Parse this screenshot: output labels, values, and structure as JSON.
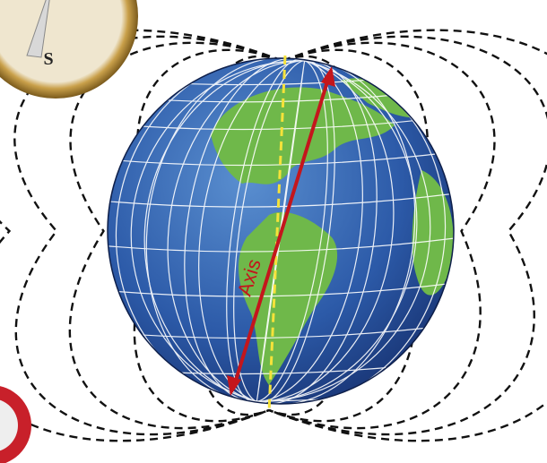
{
  "labels": {
    "compass": "S",
    "axis": "Axis"
  }
}
